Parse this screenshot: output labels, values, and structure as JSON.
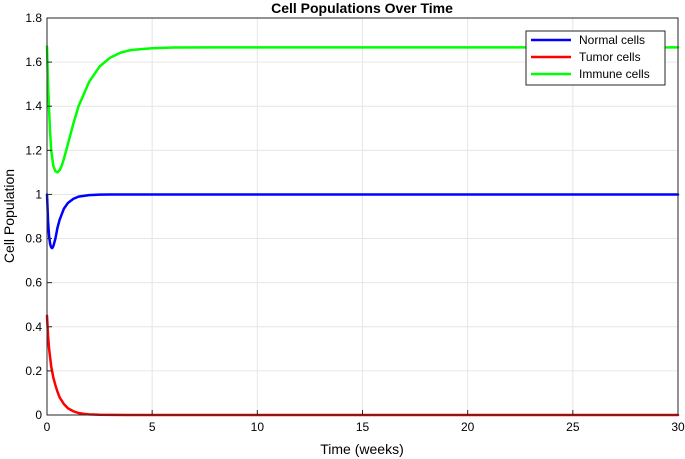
{
  "chart_data": {
    "type": "line",
    "title": "Cell Populations Over Time",
    "xlabel": "Time (weeks)",
    "ylabel": "Cell Population",
    "xlim": [
      0,
      30
    ],
    "ylim": [
      0,
      1.8
    ],
    "xticks": [
      0,
      5,
      10,
      15,
      20,
      25,
      30
    ],
    "xtick_labels": [
      "0",
      "5",
      "10",
      "15",
      "20",
      "25",
      "30"
    ],
    "yticks": [
      0,
      0.2,
      0.4,
      0.6,
      0.8,
      1.0,
      1.2,
      1.4,
      1.6,
      1.8
    ],
    "ytick_labels": [
      "0",
      "0.2",
      "0.4",
      "0.6",
      "0.8",
      "1",
      "1.2",
      "1.4",
      "1.6",
      "1.8"
    ],
    "grid": true,
    "legend_position": "top-right",
    "series": [
      {
        "name": "Normal cells",
        "color": "#0000ff",
        "x": [
          0,
          0.05,
          0.1,
          0.15,
          0.2,
          0.25,
          0.3,
          0.4,
          0.5,
          0.6,
          0.8,
          1.0,
          1.25,
          1.5,
          2.0,
          2.5,
          3,
          4,
          5,
          10,
          15,
          20,
          25,
          30
        ],
        "y": [
          1.0,
          0.88,
          0.81,
          0.775,
          0.76,
          0.757,
          0.765,
          0.8,
          0.85,
          0.885,
          0.935,
          0.962,
          0.98,
          0.99,
          0.997,
          0.999,
          1.0,
          1.0,
          1.0,
          1.0,
          1.0,
          1.0,
          1.0,
          1.0
        ]
      },
      {
        "name": "Tumor cells",
        "color": "#ff0000",
        "x": [
          0,
          0.05,
          0.1,
          0.2,
          0.3,
          0.4,
          0.5,
          0.6,
          0.8,
          1.0,
          1.25,
          1.5,
          1.75,
          2.0,
          2.5,
          3,
          4,
          5,
          10,
          15,
          20,
          25,
          30
        ],
        "y": [
          0.45,
          0.36,
          0.3,
          0.22,
          0.17,
          0.135,
          0.105,
          0.08,
          0.05,
          0.03,
          0.017,
          0.009,
          0.005,
          0.003,
          0.001,
          0.0005,
          0.0,
          0.0,
          0.0,
          0.0,
          0.0,
          0.0,
          0.0
        ]
      },
      {
        "name": "Immune cells",
        "color": "#00ff00",
        "x": [
          0,
          0.05,
          0.1,
          0.15,
          0.2,
          0.3,
          0.4,
          0.5,
          0.6,
          0.7,
          0.8,
          1.0,
          1.25,
          1.5,
          2.0,
          2.5,
          3.0,
          3.5,
          4.0,
          5.0,
          6.0,
          8.0,
          10,
          15,
          20,
          25,
          30
        ],
        "y": [
          1.67,
          1.5,
          1.38,
          1.28,
          1.2,
          1.13,
          1.105,
          1.1,
          1.11,
          1.13,
          1.16,
          1.23,
          1.32,
          1.4,
          1.51,
          1.58,
          1.62,
          1.643,
          1.655,
          1.663,
          1.666,
          1.667,
          1.667,
          1.667,
          1.667,
          1.667,
          1.667
        ]
      }
    ]
  }
}
